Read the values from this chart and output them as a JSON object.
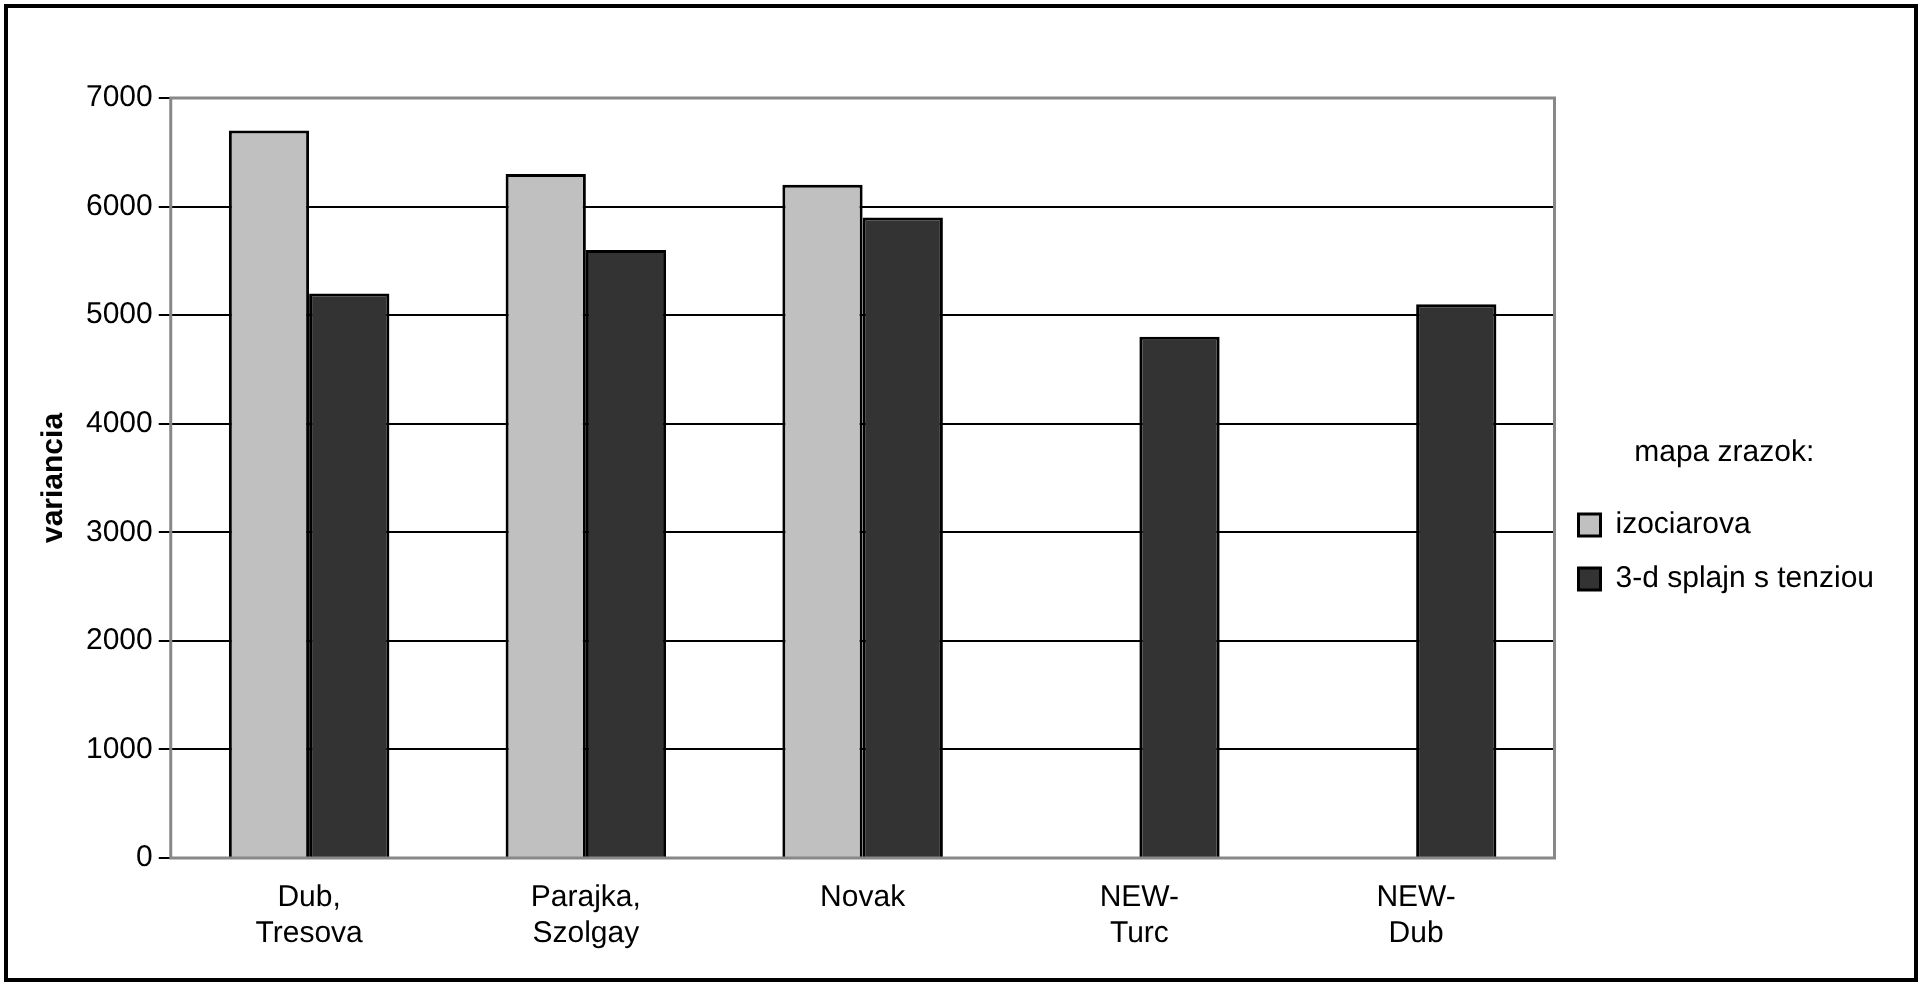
{
  "chart_data": {
    "type": "bar",
    "ylabel": "variancia",
    "legend_title": "mapa zrazok:",
    "categories": [
      "Dub,\nTresova",
      "Parajka,\nSzolgay",
      "Novak",
      "NEW-\nTurc",
      "NEW-\nDub"
    ],
    "series": [
      {
        "name": "izociarova",
        "color": "#c0c0c0",
        "values": [
          6700,
          6300,
          6200,
          null,
          null
        ]
      },
      {
        "name": "3-d splajn s tenziou",
        "color": "#333333",
        "values": [
          5200,
          5600,
          5900,
          4800,
          5100
        ]
      }
    ],
    "ylim": [
      0,
      7000
    ],
    "yticks": [
      0,
      1000,
      2000,
      3000,
      4000,
      5000,
      6000,
      7000
    ],
    "grid": "y",
    "legend": "right"
  }
}
